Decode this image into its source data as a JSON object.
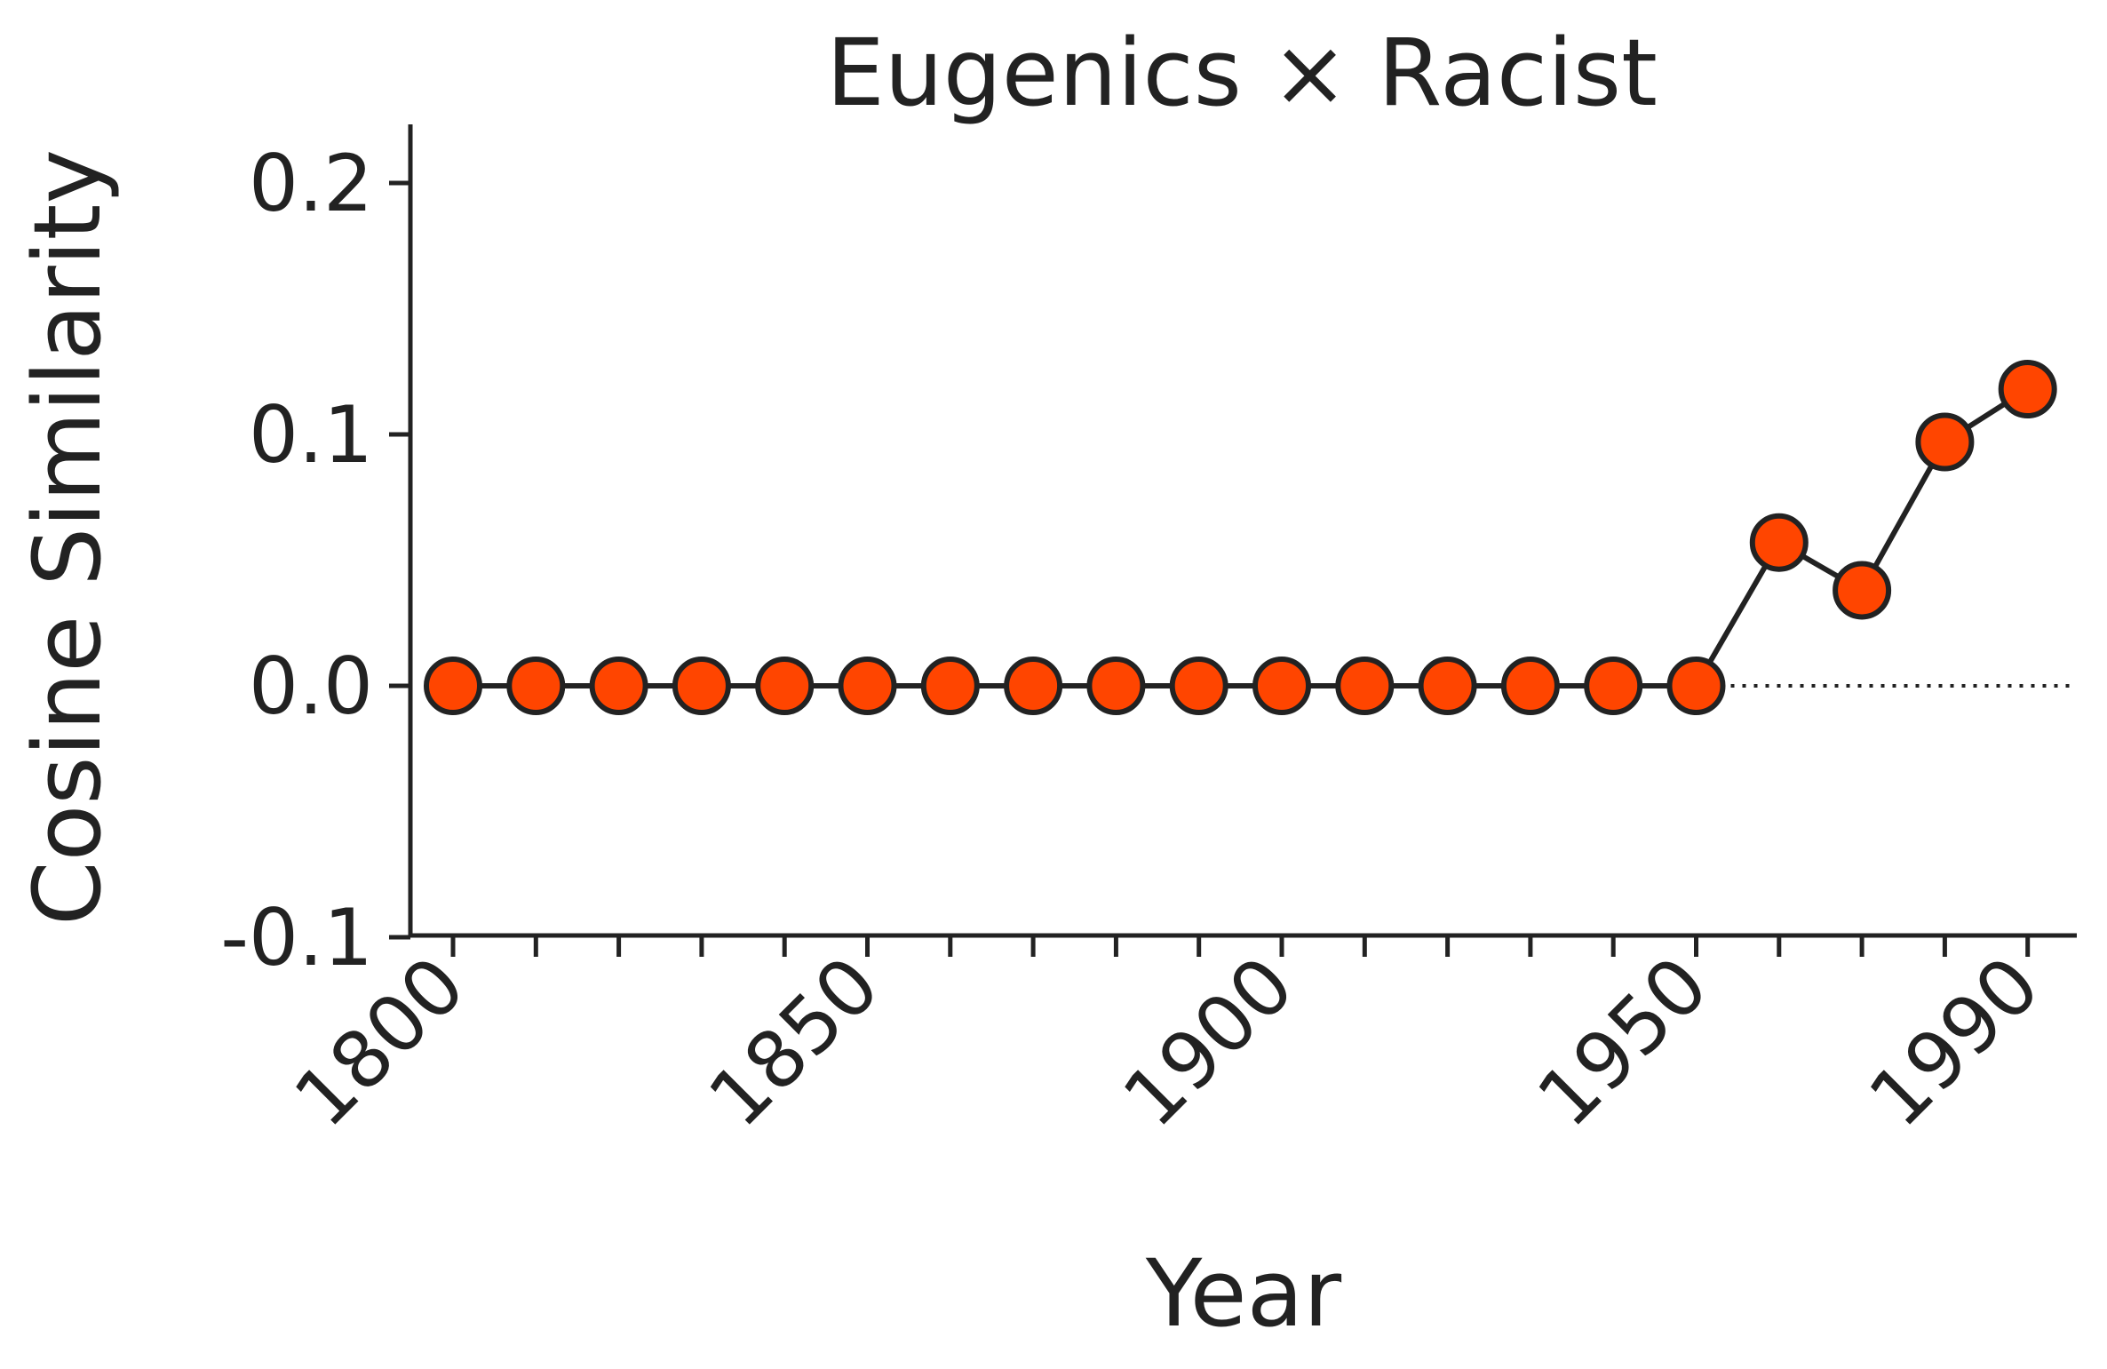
{
  "chart_data": {
    "type": "line",
    "title": "Eugenics × Racist",
    "xlabel": "Year",
    "ylabel": "Cosine Similarity",
    "x": [
      1800,
      1810,
      1820,
      1830,
      1840,
      1850,
      1860,
      1870,
      1880,
      1890,
      1900,
      1910,
      1920,
      1930,
      1940,
      1950,
      1960,
      1970,
      1980,
      1990
    ],
    "series": [
      {
        "values": [
          0,
          0,
          0,
          0,
          0,
          0,
          0,
          0,
          0,
          0,
          0,
          0,
          0,
          0,
          0,
          0,
          0.057,
          0.038,
          0.097,
          0.118
        ]
      }
    ],
    "xlim": [
      1795,
      1995
    ],
    "ylim": [
      -0.1,
      0.22
    ],
    "xticks": [
      1800,
      1850,
      1900,
      1950,
      1990
    ],
    "xtick_labels": [
      "1800",
      "1850",
      "1900",
      "1950",
      "1990"
    ],
    "yticks": [
      0.2,
      0.1,
      0.0,
      -0.1
    ],
    "ytick_labels": [
      "0.2",
      "0.1",
      "0.0",
      "-0.1"
    ],
    "reference_line": {
      "y": 0.0,
      "style": "dotted",
      "x_from": 1950
    },
    "grid": false,
    "legend": "none",
    "colors": {
      "marker_fill": "#ff4500",
      "line": "#222222",
      "axis": "#222222"
    }
  }
}
